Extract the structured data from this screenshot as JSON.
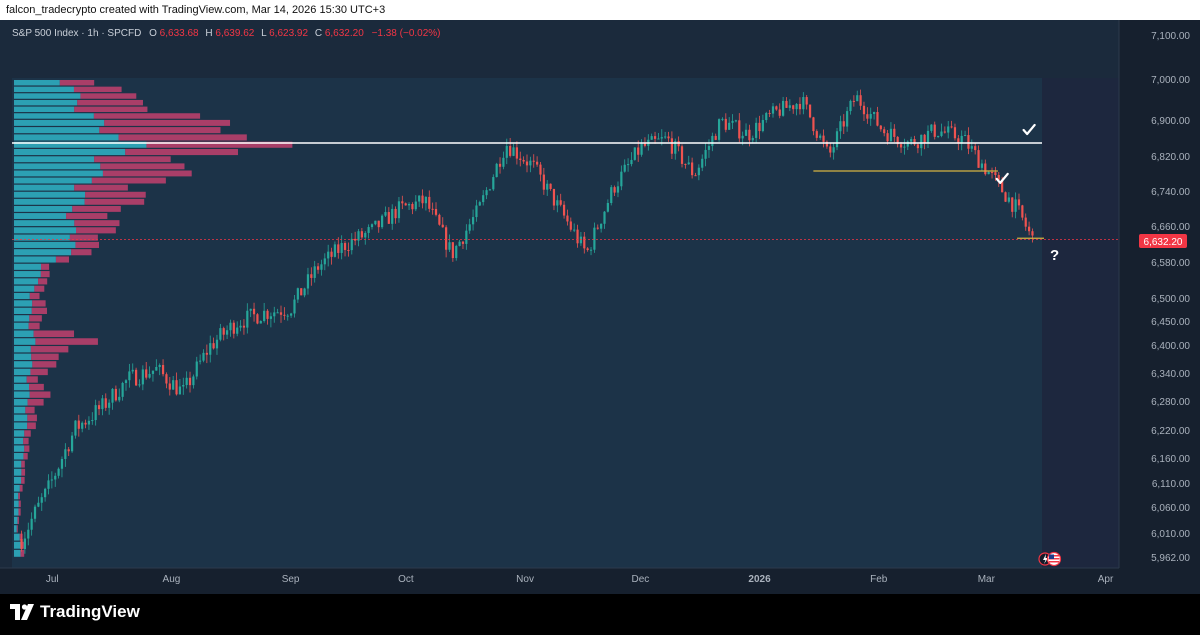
{
  "header": {
    "attribution": "falcon_tradecrypto created with TradingView.com, Mar 14, 2026 15:30 UTC+3"
  },
  "legend": {
    "symbol": "S&P 500 Index · 1h · SPCFD",
    "o_label": "O",
    "o_value": "6,633.68",
    "h_label": "H",
    "h_value": "6,639.62",
    "l_label": "L",
    "l_value": "6,623.92",
    "c_label": "C",
    "c_value": "6,632.20",
    "change": "−1.38 (−0.02%)"
  },
  "price_badge": "6,632.20",
  "question_mark": "?",
  "footer": {
    "brand": "TradingView"
  },
  "colors": {
    "background": "#1b2a3c",
    "shaded_zone": "#1e3a52",
    "up": "#26a69a",
    "down": "#ef5350",
    "volume_up": "#2fb4c7",
    "volume_down": "#c2416e",
    "level_line": "#ffffff",
    "support_line": "#d6b341",
    "price_line": "#f23645",
    "legend_value": "#f23645"
  },
  "icons": [
    "check-icon",
    "flash-icon",
    "us-flag-icon",
    "tradingview-logo-icon"
  ],
  "chart_data": {
    "type": "line",
    "title": "S&P 500 Index · 1h · SPCFD",
    "x": [
      "2025-06-23",
      "2025-06-30",
      "2025-07-07",
      "2025-07-14",
      "2025-07-21",
      "2025-07-28",
      "2025-08-04",
      "2025-08-11",
      "2025-08-18",
      "2025-08-25",
      "2025-09-01",
      "2025-09-08",
      "2025-09-15",
      "2025-09-22",
      "2025-09-29",
      "2025-10-06",
      "2025-10-13",
      "2025-10-20",
      "2025-10-27",
      "2025-11-03",
      "2025-11-10",
      "2025-11-17",
      "2025-11-24",
      "2025-12-01",
      "2025-12-08",
      "2025-12-15",
      "2025-12-22",
      "2025-12-29",
      "2026-01-05",
      "2026-01-12",
      "2026-01-19",
      "2026-01-26",
      "2026-02-02",
      "2026-02-09",
      "2026-02-16",
      "2026-02-23",
      "2026-03-02",
      "2026-03-09",
      "2026-03-13"
    ],
    "series": [
      {
        "values": [
          6000,
          6100,
          6225,
          6270,
          6330,
          6350,
          6300,
          6400,
          6450,
          6470,
          6480,
          6570,
          6620,
          6650,
          6700,
          6720,
          6600,
          6700,
          6850,
          6800,
          6700,
          6600,
          6750,
          6840,
          6860,
          6780,
          6900,
          6870,
          6920,
          6950,
          6820,
          6960,
          6880,
          6850,
          6880,
          6860,
          6780,
          6700,
          6632
        ]
      }
    ],
    "x_ticks": [
      "Jul",
      "Aug",
      "Sep",
      "Oct",
      "Nov",
      "Dec",
      "2026",
      "Feb",
      "Mar",
      "Apr"
    ],
    "y_ticks": [
      "7,100.00",
      "7,000.00",
      "6,900.00",
      "6,820.00",
      "6,740.00",
      "6,660.00",
      "6,580.00",
      "6,500.00",
      "6,450.00",
      "6,400.00",
      "6,340.00",
      "6,280.00",
      "6,220.00",
      "6,160.00",
      "6,110.00",
      "6,060.00",
      "6,010.00",
      "5,962.00"
    ],
    "ylim": [
      5962,
      7100
    ],
    "volume_profile": {
      "prices": [
        7000,
        6960,
        6920,
        6880,
        6850,
        6820,
        6780,
        6740,
        6700,
        6660,
        6620,
        6580,
        6540,
        6500,
        6470,
        6440,
        6410,
        6380,
        6350,
        6320,
        6290,
        6260,
        6230,
        6200,
        6170,
        6140,
        6110,
        6080,
        6050,
        6020,
        5990
      ],
      "up": [
        55,
        60,
        70,
        90,
        125,
        95,
        80,
        70,
        60,
        55,
        65,
        35,
        22,
        18,
        16,
        16,
        20,
        18,
        16,
        15,
        14,
        13,
        12,
        10,
        9,
        8,
        6,
        5,
        4,
        3,
        7
      ],
      "down": [
        40,
        50,
        90,
        130,
        140,
        90,
        80,
        60,
        50,
        40,
        25,
        10,
        8,
        12,
        14,
        12,
        60,
        30,
        18,
        12,
        20,
        10,
        8,
        6,
        4,
        4,
        3,
        2,
        2,
        1,
        4
      ]
    },
    "annotations": {
      "horizontal_level": 6851,
      "support_levels": [
        {
          "price": 6788,
          "from": "2026-01-15",
          "to": "2026-03-04"
        },
        {
          "price": 6635,
          "from": "2026-03-09",
          "to": "2026-03-16"
        }
      ],
      "last_price": 6632.2,
      "checkmarks": [
        {
          "date": "2026-03-12",
          "price": 6880
        },
        {
          "date": "2026-03-05",
          "price": 6770
        }
      ]
    },
    "grid": false,
    "legend": "top-left"
  }
}
